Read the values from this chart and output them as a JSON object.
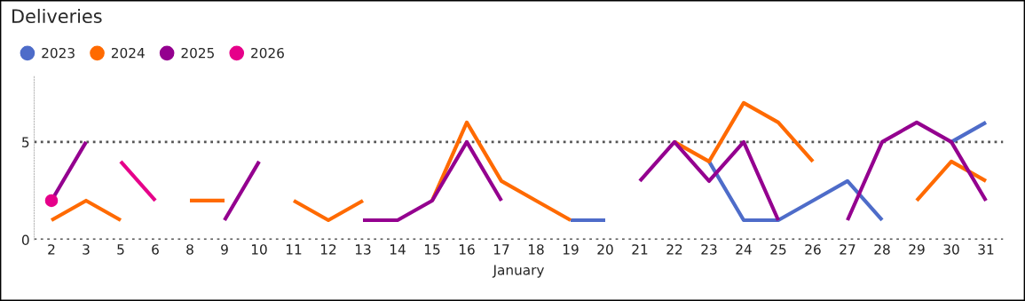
{
  "chart_data": {
    "type": "line",
    "title": "Deliveries",
    "xlabel": "January",
    "categories": [
      "2",
      "3",
      "5",
      "6",
      "8",
      "9",
      "10",
      "11",
      "12",
      "13",
      "14",
      "15",
      "16",
      "17",
      "18",
      "19",
      "20",
      "21",
      "22",
      "23",
      "24",
      "25",
      "26",
      "27",
      "28",
      "29",
      "30",
      "31"
    ],
    "series": [
      {
        "name": "2023",
        "color": "#4e6cc9",
        "values": [
          null,
          null,
          null,
          null,
          null,
          null,
          null,
          null,
          null,
          null,
          null,
          null,
          null,
          null,
          null,
          1,
          1,
          null,
          null,
          4,
          1,
          1,
          2,
          3,
          1,
          null,
          5,
          6
        ]
      },
      {
        "name": "2024",
        "color": "#ff6a00",
        "values": [
          1,
          2,
          1,
          null,
          2,
          2,
          null,
          2,
          1,
          2,
          null,
          2,
          6,
          3,
          2,
          1,
          null,
          null,
          5,
          4,
          7,
          6,
          4,
          null,
          null,
          2,
          4,
          3
        ]
      },
      {
        "name": "2025",
        "color": "#94008f",
        "values": [
          2,
          5,
          null,
          null,
          null,
          1,
          4,
          null,
          null,
          1,
          1,
          2,
          5,
          2,
          null,
          null,
          null,
          3,
          5,
          3,
          5,
          1,
          null,
          1,
          5,
          6,
          5,
          2
        ]
      },
      {
        "name": "2026",
        "color": "#e6008a",
        "values": [
          2,
          null,
          4,
          2,
          null,
          null,
          null,
          null,
          null,
          null,
          null,
          null,
          null,
          null,
          null,
          null,
          null,
          null,
          null,
          null,
          null,
          null,
          null,
          null,
          null,
          null,
          null,
          null
        ]
      }
    ],
    "ylim": [
      0,
      8.4
    ],
    "yticks": [
      0,
      5
    ],
    "grid": "y",
    "legend": "top left",
    "line_style": "solid"
  }
}
